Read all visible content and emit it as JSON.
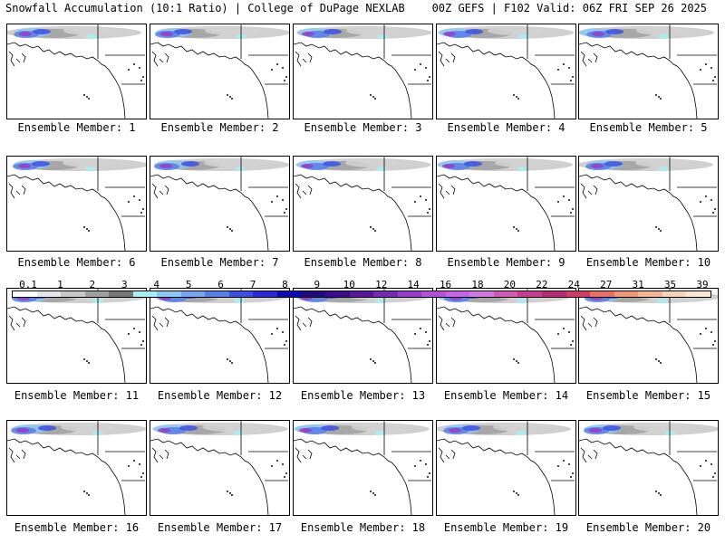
{
  "header": {
    "left": "Snowfall Accumulation (10:1 Ratio) | College of DuPage NEXLAB",
    "right": "00Z GEFS | F102 Valid: 06Z FRI SEP 26 2025"
  },
  "panels": [
    {
      "label": "Ensemble Member: 1"
    },
    {
      "label": "Ensemble Member: 2"
    },
    {
      "label": "Ensemble Member: 3"
    },
    {
      "label": "Ensemble Member: 4"
    },
    {
      "label": "Ensemble Member: 5"
    },
    {
      "label": "Ensemble Member: 6"
    },
    {
      "label": "Ensemble Member: 7"
    },
    {
      "label": "Ensemble Member: 8"
    },
    {
      "label": "Ensemble Member: 9"
    },
    {
      "label": "Ensemble Member: 10"
    },
    {
      "label": "Ensemble Member: 11"
    },
    {
      "label": "Ensemble Member: 12"
    },
    {
      "label": "Ensemble Member: 13"
    },
    {
      "label": "Ensemble Member: 14"
    },
    {
      "label": "Ensemble Member: 15"
    },
    {
      "label": "Ensemble Member: 16"
    },
    {
      "label": "Ensemble Member: 17"
    },
    {
      "label": "Ensemble Member: 18"
    },
    {
      "label": "Ensemble Member: 19"
    },
    {
      "label": "Ensemble Member: 20"
    }
  ],
  "legend": {
    "labels": [
      "0.1",
      "1",
      "2",
      "3",
      "4",
      "5",
      "6",
      "7",
      "8",
      "9",
      "10",
      "12",
      "14",
      "16",
      "18",
      "20",
      "22",
      "24",
      "27",
      "31",
      "35",
      "39"
    ],
    "colors": [
      "#ffffff",
      "#e6e6e6",
      "#c8c8c8",
      "#a0a0a0",
      "#787878",
      "#a6f0f5",
      "#8cc8f0",
      "#78a6ec",
      "#5a7ee8",
      "#3c50e4",
      "#2828d8",
      "#0a0ab4",
      "#1e0a78",
      "#3c0a8c",
      "#5a14a0",
      "#7828b4",
      "#963cc8",
      "#b450dc",
      "#c864e6",
      "#d278e6",
      "#d25ab4",
      "#c83c96",
      "#be2878",
      "#d23c64",
      "#e66e64",
      "#f09678",
      "#f5b496",
      "#fad2b4",
      "#fde6d2"
    ]
  }
}
